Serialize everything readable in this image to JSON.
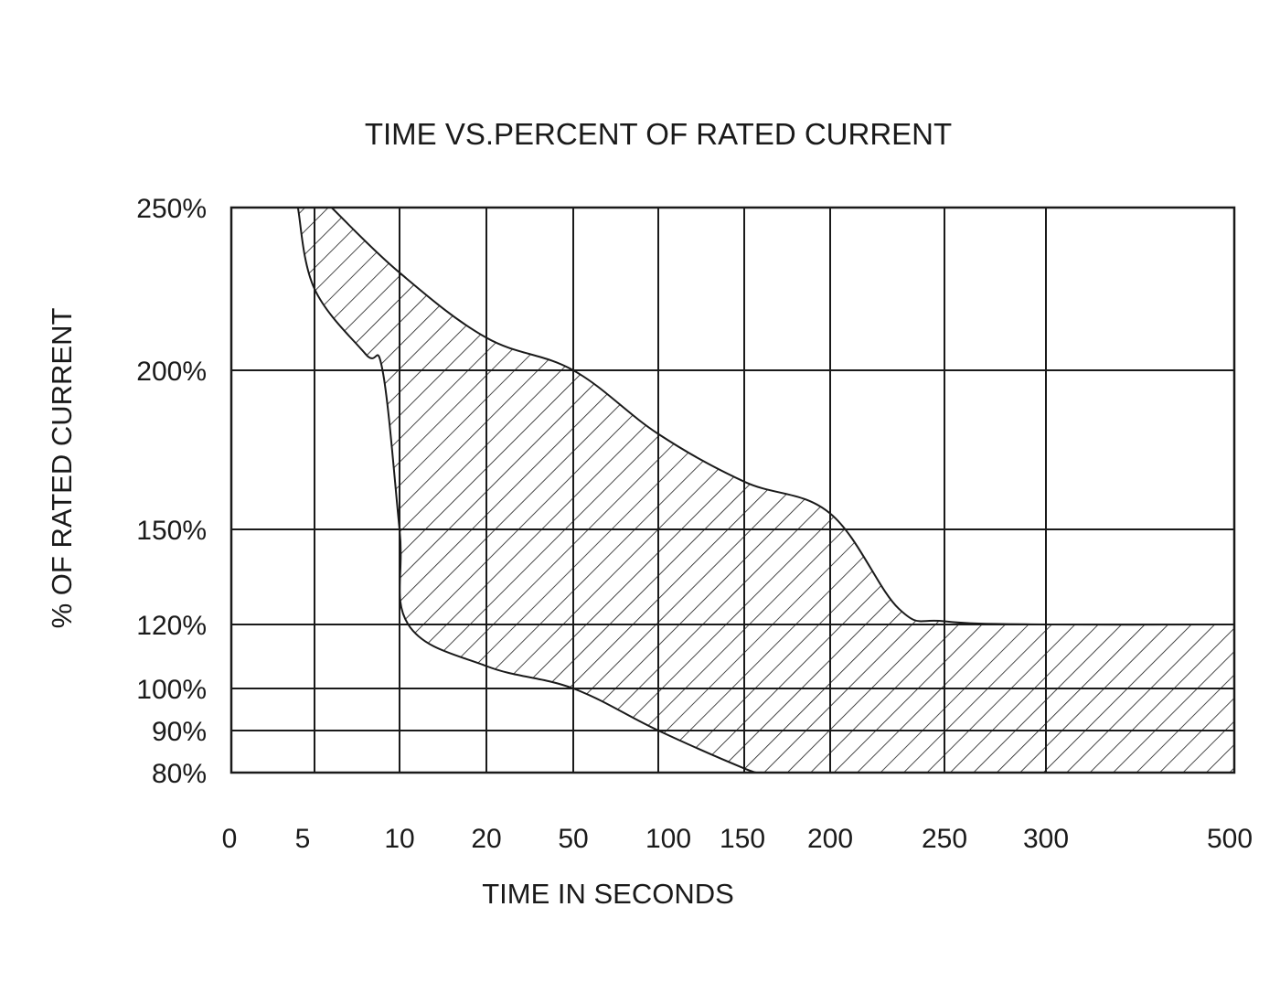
{
  "chart_data": {
    "type": "area",
    "title": "TIME VS.PERCENT OF RATED CURRENT",
    "xlabel": "TIME IN SECONDS",
    "ylabel": "% OF RATED CURRENT",
    "x_ticks": [
      "0",
      "5",
      "10",
      "20",
      "50",
      "100",
      "150",
      "200",
      "250",
      "300",
      "500"
    ],
    "y_ticks": [
      "250%",
      "200%",
      "150%",
      "120%",
      "100%",
      "90%",
      "80%"
    ],
    "x_scale": "non-uniform (categorical tick positions)",
    "ylim": [
      80,
      250
    ],
    "grid": true,
    "fill": "diagonal hatch",
    "series": [
      {
        "role": "upper bound",
        "x": [
          6,
          10,
          20,
          50,
          100,
          150,
          200,
          230,
          250,
          300,
          500
        ],
        "y": [
          250,
          230,
          210,
          200,
          180,
          165,
          155,
          125,
          121,
          120,
          120
        ]
      },
      {
        "role": "lower bound",
        "x": [
          4,
          5,
          8,
          9,
          10,
          11,
          20,
          50,
          100,
          150,
          160
        ],
        "y": [
          250,
          225,
          205,
          200,
          150,
          120,
          107,
          100,
          90,
          81,
          80
        ]
      }
    ]
  }
}
